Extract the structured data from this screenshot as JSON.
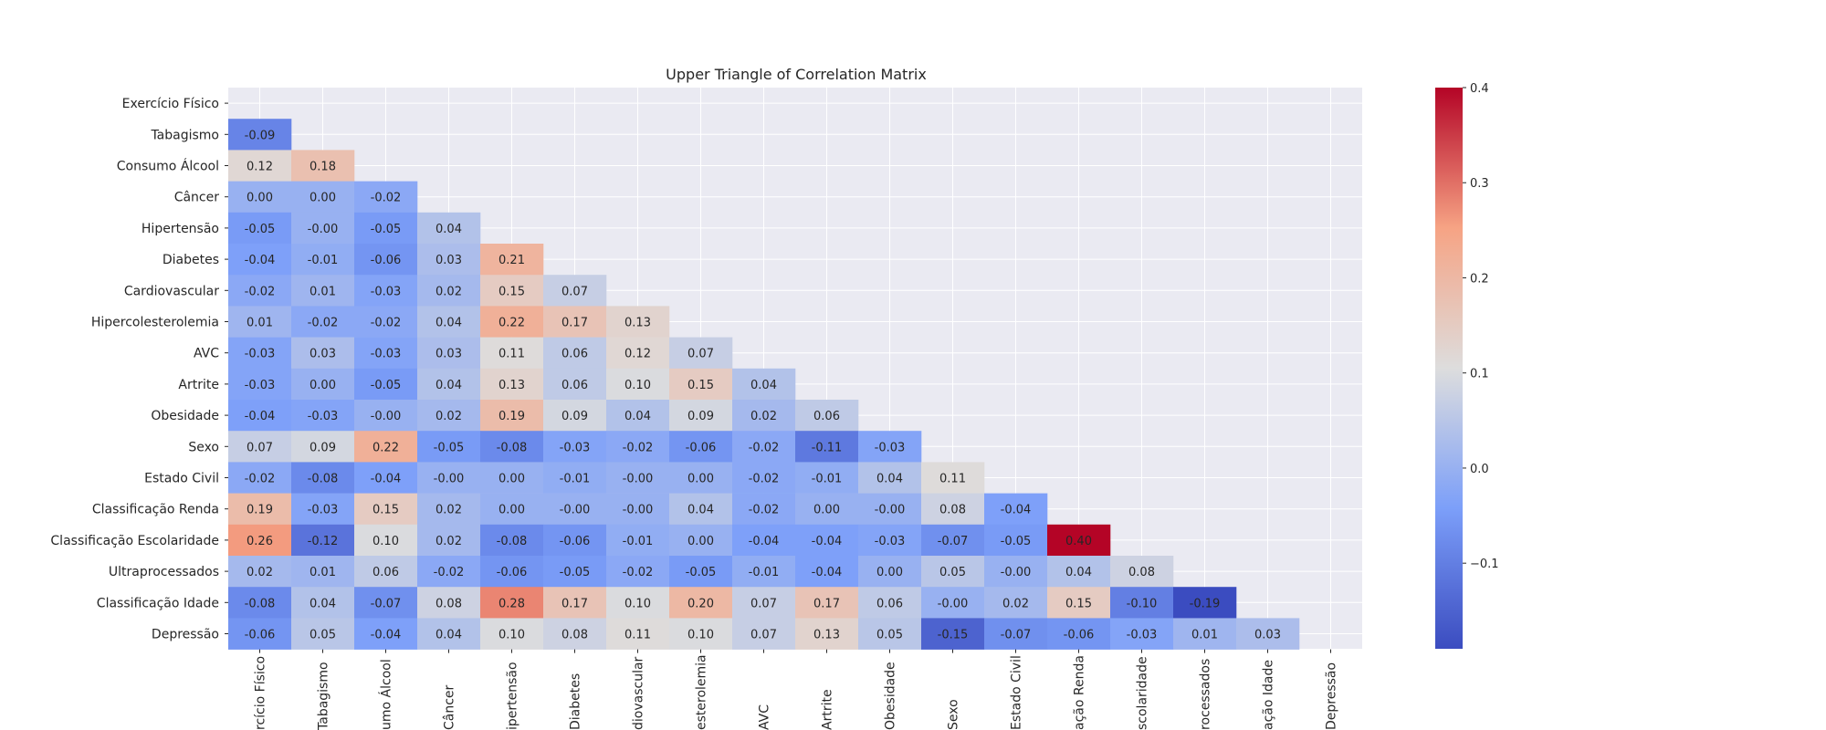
{
  "chart_data": {
    "type": "heatmap",
    "title": "Upper Triangle of Correlation Matrix",
    "xlabel": "",
    "ylabel": "",
    "labels": [
      "Exercício Físico",
      "Tabagismo",
      "Consumo Álcool",
      "Câncer",
      "Hipertensão",
      "Diabetes",
      "Cardiovascular",
      "Hipercolesterolemia",
      "AVC",
      "Artrite",
      "Obesidade",
      "Sexo",
      "Estado Civil",
      "Classificação Renda",
      "Classificação Escolaridade",
      "Ultraprocessados",
      "Classificação Idade",
      "Depressão"
    ],
    "x_tick_labels_visible": [
      "rcício Físico",
      "Tabagismo",
      "umo Álcool",
      "Câncer",
      "ipertensão",
      "Diabetes",
      "diovascular",
      "esterolemia",
      "AVC",
      "Artrite",
      "Obesidade",
      "Sexo",
      "Estado Civil",
      "ação Renda",
      "scolaridade",
      "rocessados",
      "ação Idade",
      "Depressão"
    ],
    "lower_triangle": [
      [],
      [
        "-0.09"
      ],
      [
        "0.12",
        "0.18"
      ],
      [
        "0.00",
        "0.00",
        "-0.02"
      ],
      [
        "-0.05",
        "-0.00",
        "-0.05",
        "0.04"
      ],
      [
        "-0.04",
        "-0.01",
        "-0.06",
        "0.03",
        "0.21"
      ],
      [
        "-0.02",
        "0.01",
        "-0.03",
        "0.02",
        "0.15",
        "0.07"
      ],
      [
        "0.01",
        "-0.02",
        "-0.02",
        "0.04",
        "0.22",
        "0.17",
        "0.13"
      ],
      [
        "-0.03",
        "0.03",
        "-0.03",
        "0.03",
        "0.11",
        "0.06",
        "0.12",
        "0.07"
      ],
      [
        "-0.03",
        "0.00",
        "-0.05",
        "0.04",
        "0.13",
        "0.06",
        "0.10",
        "0.15",
        "0.04"
      ],
      [
        "-0.04",
        "-0.03",
        "-0.00",
        "0.02",
        "0.19",
        "0.09",
        "0.04",
        "0.09",
        "0.02",
        "0.06"
      ],
      [
        "0.07",
        "0.09",
        "0.22",
        "-0.05",
        "-0.08",
        "-0.03",
        "-0.02",
        "-0.06",
        "-0.02",
        "-0.11",
        "-0.03"
      ],
      [
        "-0.02",
        "-0.08",
        "-0.04",
        "-0.00",
        "0.00",
        "-0.01",
        "-0.00",
        "0.00",
        "-0.02",
        "-0.01",
        "0.04",
        "0.11"
      ],
      [
        "0.19",
        "-0.03",
        "0.15",
        "0.02",
        "0.00",
        "-0.00",
        "-0.00",
        "0.04",
        "-0.02",
        "0.00",
        "-0.00",
        "0.08",
        "-0.04"
      ],
      [
        "0.26",
        "-0.12",
        "0.10",
        "0.02",
        "-0.08",
        "-0.06",
        "-0.01",
        "0.00",
        "-0.04",
        "-0.04",
        "-0.03",
        "-0.07",
        "-0.05",
        "0.40"
      ],
      [
        "0.02",
        "0.01",
        "0.06",
        "-0.02",
        "-0.06",
        "-0.05",
        "-0.02",
        "-0.05",
        "-0.01",
        "-0.04",
        "0.00",
        "0.05",
        "-0.00",
        "0.04",
        "0.08"
      ],
      [
        "-0.08",
        "0.04",
        "-0.07",
        "0.08",
        "0.28",
        "0.17",
        "0.10",
        "0.20",
        "0.07",
        "0.17",
        "0.06",
        "-0.00",
        "0.02",
        "0.15",
        "-0.10",
        "-0.19"
      ],
      [
        "-0.06",
        "0.05",
        "-0.04",
        "0.04",
        "0.10",
        "0.08",
        "0.11",
        "0.10",
        "0.07",
        "0.13",
        "0.05",
        "-0.15",
        "-0.07",
        "-0.06",
        "-0.03",
        "0.01",
        "0.03"
      ]
    ],
    "colormap": "coolwarm",
    "vmin": -0.19,
    "vmax": 0.4,
    "colorbar_ticks": [
      "0.4",
      "0.3",
      "0.2",
      "0.1",
      "0.0",
      "−0.1"
    ],
    "colorbar_tick_values": [
      0.4,
      0.3,
      0.2,
      0.1,
      0.0,
      -0.1
    ],
    "grid": true,
    "background_color": "#eaeaf2"
  }
}
